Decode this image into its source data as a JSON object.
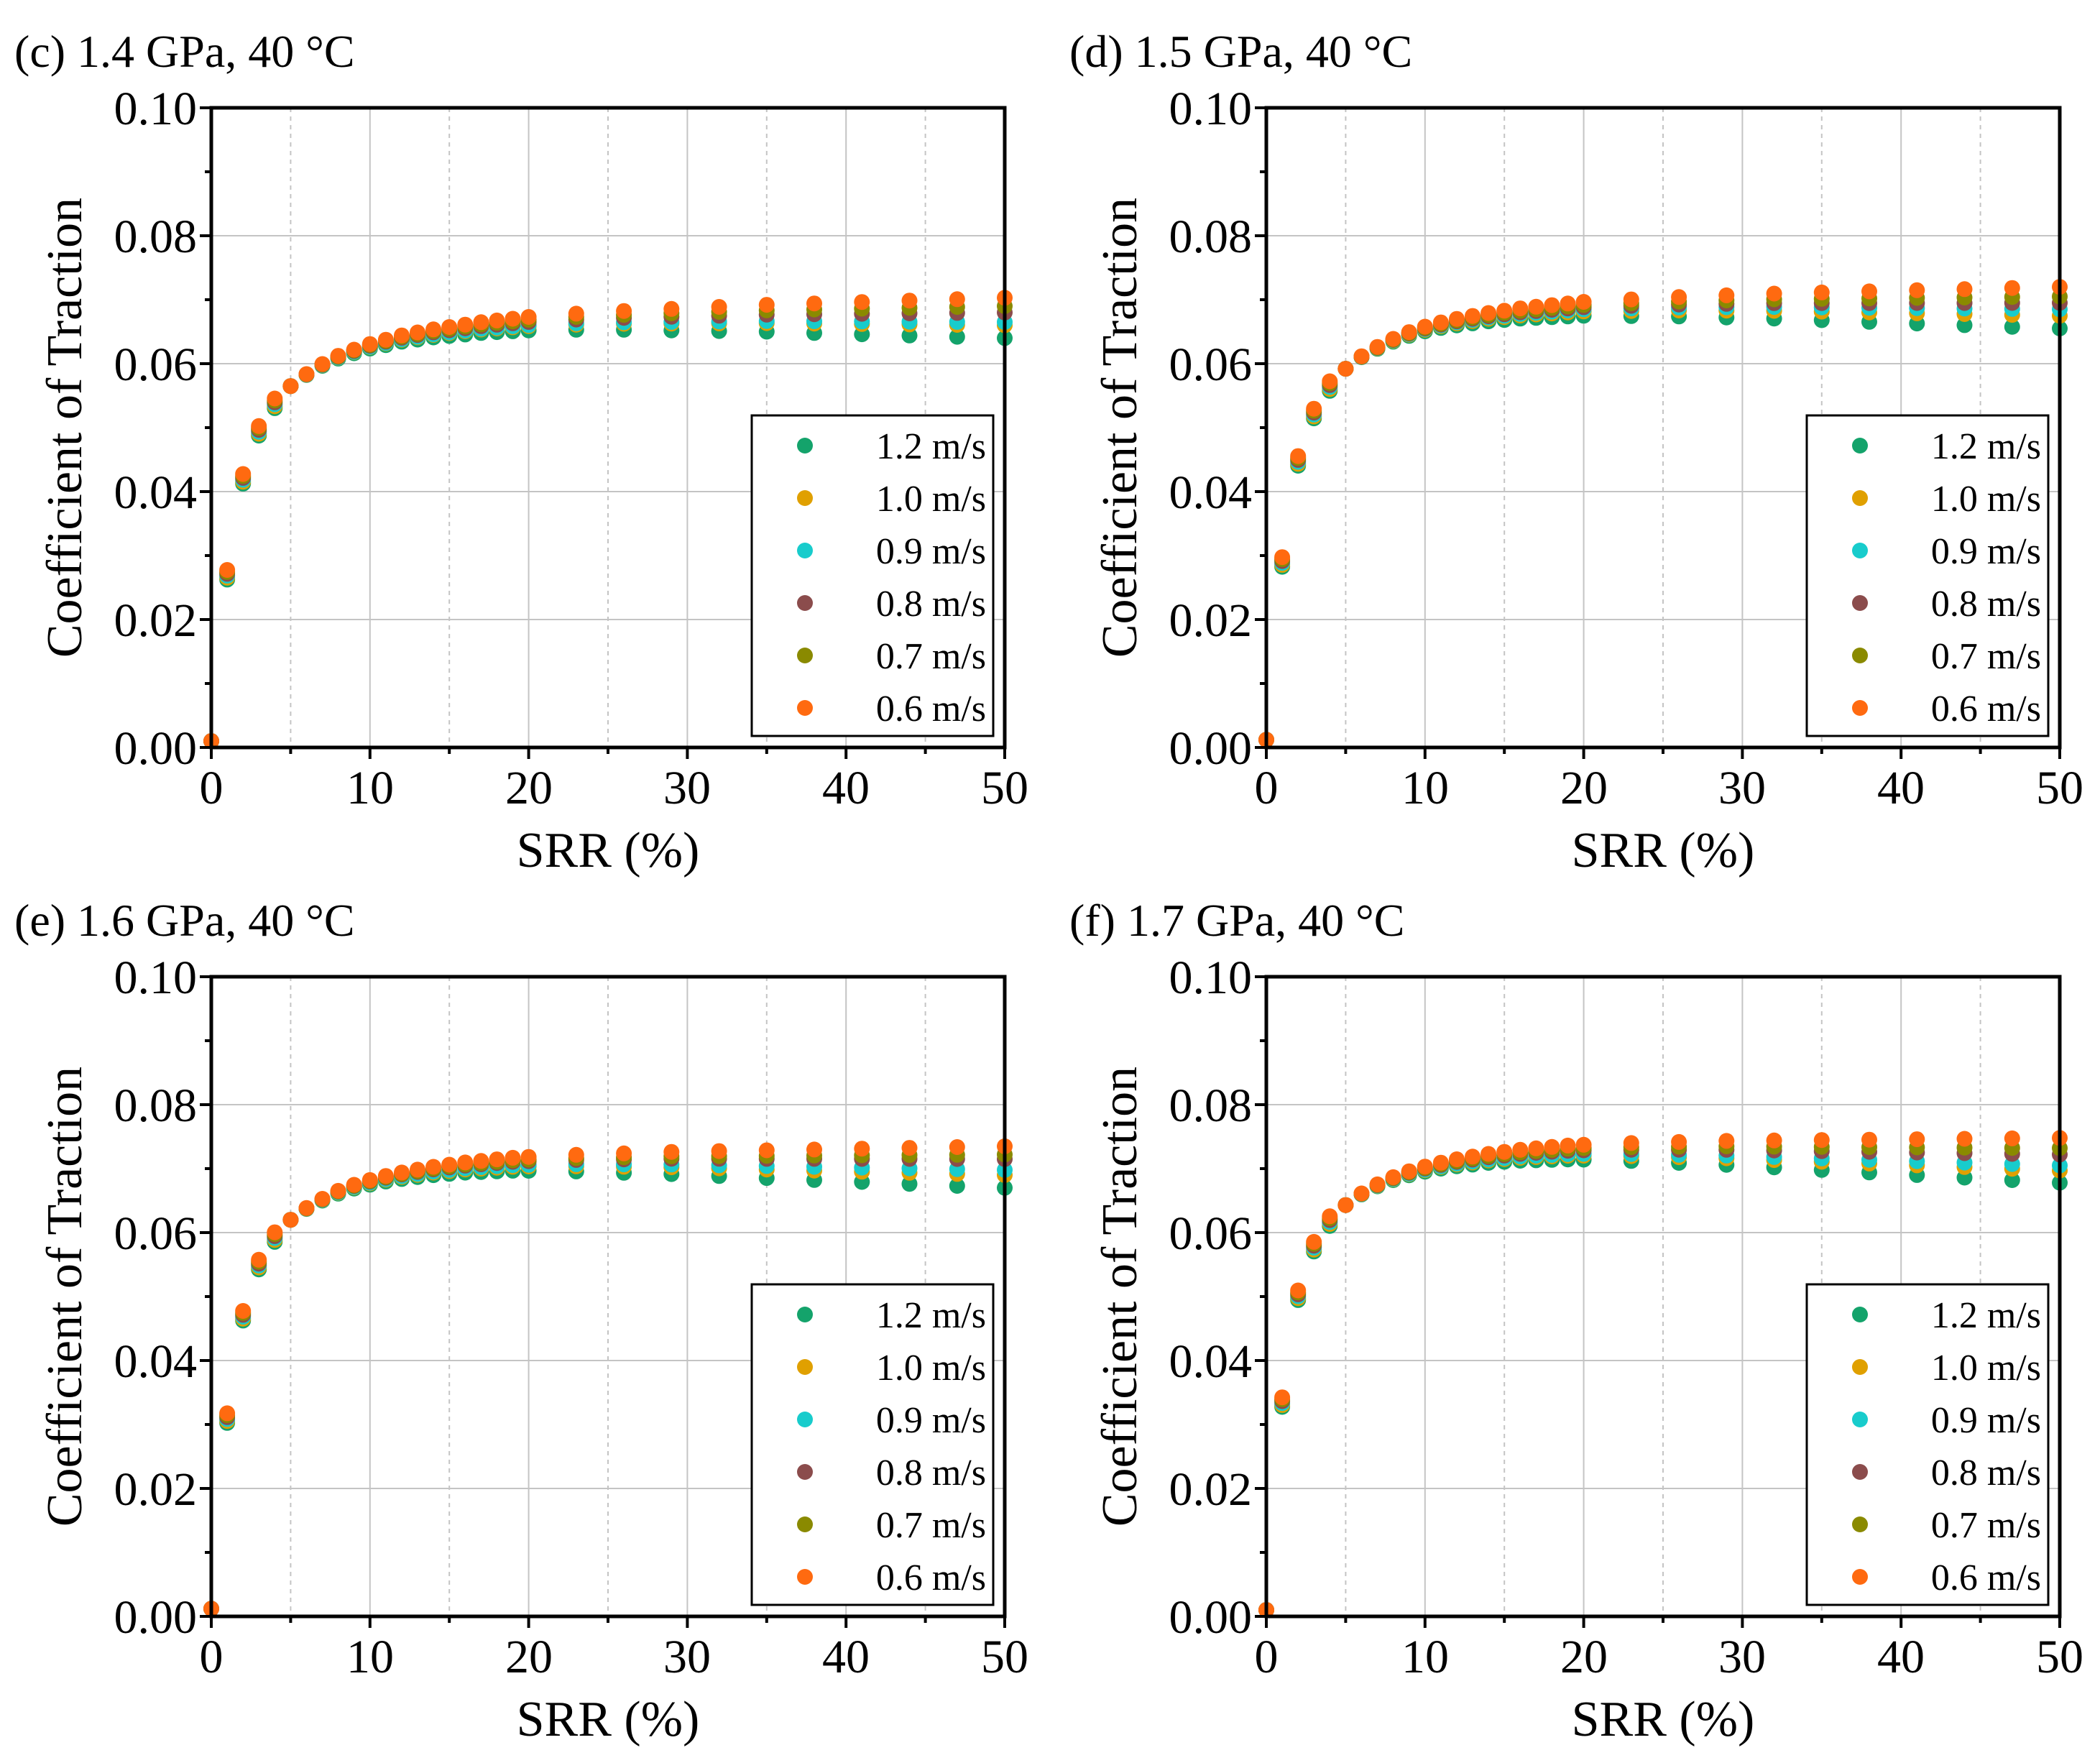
{
  "figure": {
    "series_names": [
      "1.2 m/s",
      "1.0 m/s",
      "0.9 m/s",
      "0.8 m/s",
      "0.7 m/s",
      "0.6 m/s"
    ],
    "series_colors": [
      "#14a36b",
      "#e0a000",
      "#18cccc",
      "#8b4c4c",
      "#8a8a00",
      "#ff6a10"
    ]
  },
  "chart_data": [
    {
      "type": "scatter",
      "title": "(c) 1.4 GPa, 40 °C",
      "xlabel": "SRR (%)",
      "ylabel": "Coefficient of Traction",
      "xlim": [
        0,
        50
      ],
      "ylim": [
        0,
        0.1
      ],
      "xticks": [
        "0",
        "10",
        "20",
        "30",
        "40",
        "50"
      ],
      "yticks": [
        "0.00",
        "0.02",
        "0.04",
        "0.06",
        "0.08",
        "0.10"
      ],
      "legend": "lower-right",
      "grid": true,
      "base_curve": {
        "x": [
          0,
          1,
          2,
          3,
          4,
          5,
          6,
          7,
          8,
          9,
          10,
          11,
          12,
          13,
          14,
          15,
          16,
          17,
          18,
          19,
          20,
          23,
          26,
          29,
          32,
          35,
          38,
          41,
          44,
          47,
          50
        ],
        "y": [
          0.001,
          0.027,
          0.042,
          0.0495,
          0.0538,
          0.0565,
          0.0583,
          0.0598,
          0.061,
          0.0619,
          0.0627,
          0.0633,
          0.0639,
          0.0643,
          0.0647,
          0.065,
          0.0653,
          0.0656,
          0.0658,
          0.066,
          0.0662,
          0.0665,
          0.0667,
          0.0668,
          0.0669,
          0.067,
          0.067,
          0.067,
          0.067,
          0.067,
          0.067
        ]
      },
      "series": [
        {
          "name": "1.2 m/s",
          "values_plateau_offset": -0.0015,
          "final": 0.064
        },
        {
          "name": "1.0 m/s",
          "final": 0.066
        },
        {
          "name": "0.9 m/s",
          "final": 0.0665
        },
        {
          "name": "0.8 m/s",
          "final": 0.068
        },
        {
          "name": "0.7 m/s",
          "final": 0.069
        },
        {
          "name": "0.6 m/s",
          "final": 0.0703
        }
      ]
    },
    {
      "type": "scatter",
      "title": "(d) 1.5 GPa, 40 °C",
      "xlabel": "SRR (%)",
      "ylabel": "Coefficient of Traction",
      "xlim": [
        0,
        50
      ],
      "ylim": [
        0,
        0.1
      ],
      "xticks": [
        "0",
        "10",
        "20",
        "30",
        "40",
        "50"
      ],
      "yticks": [
        "0.00",
        "0.02",
        "0.04",
        "0.06",
        "0.08",
        "0.10"
      ],
      "legend": "lower-right",
      "grid": true,
      "base_curve": {
        "x": [
          0,
          1,
          2,
          3,
          4,
          5,
          6,
          7,
          8,
          9,
          10,
          11,
          12,
          13,
          14,
          15,
          16,
          17,
          18,
          19,
          20,
          23,
          26,
          29,
          32,
          35,
          38,
          41,
          44,
          47,
          50
        ],
        "y": [
          0.0012,
          0.029,
          0.0448,
          0.0522,
          0.0565,
          0.0592,
          0.0611,
          0.0625,
          0.0637,
          0.0647,
          0.0655,
          0.0661,
          0.0666,
          0.067,
          0.0674,
          0.0677,
          0.068,
          0.0682,
          0.0684,
          0.0686,
          0.0688,
          0.069,
          0.0692,
          0.0693,
          0.0694,
          0.0694,
          0.0694,
          0.0694,
          0.0694,
          0.0694,
          0.0694
        ]
      },
      "series": [
        {
          "name": "1.2 m/s",
          "final": 0.0655
        },
        {
          "name": "1.0 m/s",
          "final": 0.0675
        },
        {
          "name": "0.9 m/s",
          "final": 0.0685
        },
        {
          "name": "0.8 m/s",
          "final": 0.0695
        },
        {
          "name": "0.7 m/s",
          "final": 0.0705
        },
        {
          "name": "0.6 m/s",
          "final": 0.072
        }
      ]
    },
    {
      "type": "scatter",
      "title": "(e) 1.6 GPa, 40 °C",
      "xlabel": "SRR (%)",
      "ylabel": "Coefficient of Traction",
      "xlim": [
        0,
        50
      ],
      "ylim": [
        0,
        0.1
      ],
      "xticks": [
        "0",
        "10",
        "20",
        "30",
        "40",
        "50"
      ],
      "yticks": [
        "0.00",
        "0.02",
        "0.04",
        "0.06",
        "0.08",
        "0.10"
      ],
      "legend": "lower-right",
      "grid": true,
      "base_curve": {
        "x": [
          0,
          1,
          2,
          3,
          4,
          5,
          6,
          7,
          8,
          9,
          10,
          11,
          12,
          13,
          14,
          15,
          16,
          17,
          18,
          19,
          20,
          23,
          26,
          29,
          32,
          35,
          38,
          41,
          44,
          47,
          50
        ],
        "y": [
          0.0012,
          0.031,
          0.047,
          0.055,
          0.0593,
          0.062,
          0.0638,
          0.0652,
          0.0664,
          0.0673,
          0.068,
          0.0686,
          0.0691,
          0.0695,
          0.0699,
          0.0702,
          0.0705,
          0.0707,
          0.0709,
          0.0711,
          0.0712,
          0.0714,
          0.0715,
          0.0716,
          0.0716,
          0.0716,
          0.0716,
          0.0716,
          0.0716,
          0.0716,
          0.0716
        ]
      },
      "series": [
        {
          "name": "1.2 m/s",
          "final": 0.067
        },
        {
          "name": "1.0 m/s",
          "final": 0.069
        },
        {
          "name": "0.9 m/s",
          "final": 0.0698
        },
        {
          "name": "0.8 m/s",
          "final": 0.0715
        },
        {
          "name": "0.7 m/s",
          "final": 0.0722
        },
        {
          "name": "0.6 m/s",
          "final": 0.0735
        }
      ]
    },
    {
      "type": "scatter",
      "title": "(f) 1.7 GPa, 40 °C",
      "xlabel": "SRR (%)",
      "ylabel": "Coefficient of Traction",
      "xlim": [
        0,
        50
      ],
      "ylim": [
        0,
        0.1
      ],
      "xticks": [
        "0",
        "10",
        "20",
        "30",
        "40",
        "50"
      ],
      "yticks": [
        "0.00",
        "0.02",
        "0.04",
        "0.06",
        "0.08",
        "0.10"
      ],
      "legend": "lower-right",
      "grid": true,
      "base_curve": {
        "x": [
          0,
          1,
          2,
          3,
          4,
          5,
          6,
          7,
          8,
          9,
          10,
          11,
          12,
          13,
          14,
          15,
          16,
          17,
          18,
          19,
          20,
          23,
          26,
          29,
          32,
          35,
          38,
          41,
          44,
          47,
          50
        ],
        "y": [
          0.001,
          0.0335,
          0.0502,
          0.0578,
          0.0618,
          0.0643,
          0.0661,
          0.0675,
          0.0686,
          0.0695,
          0.0702,
          0.0708,
          0.0713,
          0.0717,
          0.0721,
          0.0724,
          0.0727,
          0.0729,
          0.0731,
          0.0733,
          0.0734,
          0.0736,
          0.0737,
          0.0738,
          0.0738,
          0.0738,
          0.0738,
          0.0738,
          0.0738,
          0.0738,
          0.0738
        ]
      },
      "series": [
        {
          "name": "1.2 m/s",
          "final": 0.0678
        },
        {
          "name": "1.0 m/s",
          "final": 0.0697
        },
        {
          "name": "0.9 m/s",
          "final": 0.0705
        },
        {
          "name": "0.8 m/s",
          "final": 0.0722
        },
        {
          "name": "0.7 m/s",
          "final": 0.0732
        },
        {
          "name": "0.6 m/s",
          "final": 0.0748
        }
      ]
    }
  ]
}
